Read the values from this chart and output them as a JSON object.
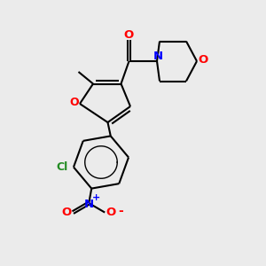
{
  "bg_color": "#ebebeb",
  "bond_color": "#000000",
  "figsize": [
    3.0,
    3.0
  ],
  "dpi": 100,
  "xlim": [
    0,
    10
  ],
  "ylim": [
    0,
    10
  ]
}
